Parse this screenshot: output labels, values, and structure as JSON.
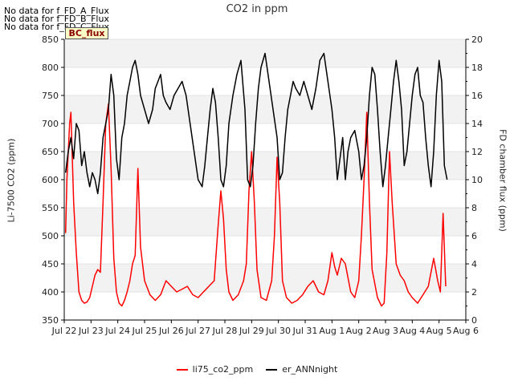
{
  "chart_data": {
    "type": "line",
    "title": "CO2 in ppm",
    "ylabel": "Li-7500 CO2 (ppm)",
    "y2label": "FD chamber flux (ppm)",
    "ylim": [
      350,
      850
    ],
    "y2lim": [
      0,
      20
    ],
    "yticks": [
      "350",
      "400",
      "450",
      "500",
      "550",
      "600",
      "650",
      "700",
      "750",
      "800",
      "850"
    ],
    "y2ticks": [
      "0",
      "2",
      "4",
      "6",
      "8",
      "10",
      "12",
      "14",
      "16",
      "18",
      "20"
    ],
    "xticks": [
      "Jul 22",
      "Jul 23",
      "Jul 24",
      "Jul 25",
      "Jul 26",
      "Jul 27",
      "Jul 28",
      "Jul 29",
      "Jul 30",
      "Jul 31",
      "Aug 1",
      "Aug 2",
      "Aug 3",
      "Aug 4",
      "Aug 5",
      "Aug 6"
    ],
    "xlim_days": [
      0,
      15
    ],
    "no_data_messages": [
      "No data for f_FD_A_Flux",
      "No data for f_FD_B_Flux",
      "No data for f_FD_C_Flux"
    ],
    "annotation": "BC_flux",
    "series": [
      {
        "name": "li75_co2_ppm",
        "color": "#ff0000",
        "axis": "left",
        "x": [
          0.05,
          0.1,
          0.15,
          0.2,
          0.25,
          0.3,
          0.35,
          0.45,
          0.55,
          0.65,
          0.75,
          0.85,
          0.95,
          1.05,
          1.15,
          1.25,
          1.35,
          1.45,
          1.55,
          1.65,
          1.75,
          1.85,
          1.95,
          2.05,
          2.15,
          2.25,
          2.35,
          2.45,
          2.55,
          2.65,
          2.75,
          2.85,
          3.0,
          3.2,
          3.4,
          3.6,
          3.8,
          4.0,
          4.2,
          4.4,
          4.6,
          4.8,
          5.0,
          5.2,
          5.4,
          5.6,
          5.75,
          5.85,
          5.95,
          6.05,
          6.15,
          6.3,
          6.5,
          6.7,
          6.8,
          6.9,
          7.0,
          7.1,
          7.2,
          7.35,
          7.55,
          7.75,
          7.85,
          7.95,
          8.05,
          8.15,
          8.3,
          8.5,
          8.7,
          8.9,
          9.1,
          9.3,
          9.5,
          9.7,
          9.85,
          10.0,
          10.1,
          10.2,
          10.35,
          10.5,
          10.7,
          10.85,
          11.0,
          11.1,
          11.2,
          11.3,
          11.4,
          11.5,
          11.7,
          11.85,
          11.95,
          12.05,
          12.15,
          12.25,
          12.4,
          12.55,
          12.7,
          12.85,
          13.0,
          13.2,
          13.4,
          13.6,
          13.8,
          13.95,
          14.05,
          14.15,
          14.25
        ],
        "values": [
          505,
          600,
          650,
          700,
          720,
          640,
          560,
          470,
          400,
          385,
          380,
          382,
          390,
          410,
          430,
          440,
          435,
          560,
          700,
          735,
          620,
          460,
          400,
          380,
          375,
          385,
          400,
          420,
          450,
          465,
          620,
          480,
          420,
          395,
          385,
          395,
          420,
          410,
          400,
          405,
          410,
          395,
          390,
          400,
          410,
          420,
          520,
          580,
          530,
          440,
          400,
          385,
          395,
          420,
          450,
          580,
          650,
          560,
          440,
          390,
          385,
          420,
          500,
          640,
          560,
          420,
          390,
          380,
          385,
          395,
          410,
          420,
          400,
          395,
          420,
          470,
          445,
          430,
          460,
          450,
          400,
          390,
          420,
          500,
          600,
          720,
          560,
          440,
          390,
          375,
          380,
          470,
          650,
          560,
          450,
          430,
          420,
          400,
          390,
          380,
          395,
          410,
          460,
          420,
          400,
          540,
          410
        ]
      },
      {
        "name": "er_ANNnight",
        "color": "#000000",
        "axis": "right",
        "x": [
          0.05,
          0.15,
          0.25,
          0.35,
          0.45,
          0.55,
          0.65,
          0.75,
          0.85,
          0.95,
          1.05,
          1.15,
          1.25,
          1.35,
          1.45,
          1.55,
          1.65,
          1.75,
          1.85,
          1.95,
          2.05,
          2.15,
          2.25,
          2.35,
          2.45,
          2.55,
          2.65,
          2.75,
          2.85,
          3.0,
          3.15,
          3.3,
          3.4,
          3.5,
          3.6,
          3.7,
          3.8,
          3.95,
          4.1,
          4.25,
          4.4,
          4.55,
          4.7,
          4.85,
          5.0,
          5.15,
          5.25,
          5.35,
          5.45,
          5.55,
          5.65,
          5.75,
          5.85,
          5.95,
          6.05,
          6.15,
          6.3,
          6.45,
          6.6,
          6.75,
          6.85,
          6.95,
          7.05,
          7.15,
          7.25,
          7.35,
          7.5,
          7.65,
          7.8,
          7.95,
          8.05,
          8.15,
          8.25,
          8.35,
          8.45,
          8.55,
          8.65,
          8.8,
          8.95,
          9.1,
          9.25,
          9.4,
          9.55,
          9.7,
          9.85,
          10.0,
          10.1,
          10.2,
          10.3,
          10.4,
          10.5,
          10.6,
          10.7,
          10.85,
          11.0,
          11.1,
          11.2,
          11.3,
          11.4,
          11.5,
          11.6,
          11.7,
          11.8,
          11.9,
          12.0,
          12.1,
          12.2,
          12.3,
          12.4,
          12.5,
          12.6,
          12.7,
          12.8,
          12.9,
          13.0,
          13.1,
          13.2,
          13.3,
          13.4,
          13.5,
          13.6,
          13.7,
          13.8,
          13.9,
          14.0,
          14.1,
          14.2,
          14.3
        ],
        "values": [
          10.5,
          12,
          13,
          11.5,
          14,
          13.5,
          11,
          12,
          10.5,
          9.5,
          10.5,
          10,
          9,
          10.5,
          13,
          14,
          15,
          17.5,
          16,
          11.5,
          10,
          13,
          14,
          16,
          17,
          18,
          18.5,
          17.5,
          16,
          15,
          14,
          15,
          16.5,
          17,
          17.5,
          16,
          15.5,
          15,
          16,
          16.5,
          17,
          16,
          14,
          12,
          10,
          9.5,
          11,
          13,
          15,
          16.5,
          15.5,
          13,
          10,
          9.5,
          11,
          14,
          16,
          17.5,
          18.5,
          15,
          10,
          9.5,
          11,
          14,
          16.5,
          18,
          19,
          17,
          15,
          13,
          10,
          10.5,
          13,
          15,
          16,
          17,
          16.5,
          16,
          17,
          16,
          15,
          16.5,
          18.5,
          19,
          17,
          15,
          13,
          10,
          11.5,
          13,
          10,
          12,
          13,
          13.5,
          12,
          10,
          11,
          13,
          16,
          18,
          17.5,
          15,
          12,
          9.5,
          11,
          13,
          15,
          17,
          18.5,
          17,
          15,
          11,
          12,
          14,
          16,
          17.5,
          18,
          16,
          15.5,
          13,
          11,
          9.5,
          12,
          16,
          18.5,
          17,
          11,
          10
        ]
      }
    ]
  }
}
